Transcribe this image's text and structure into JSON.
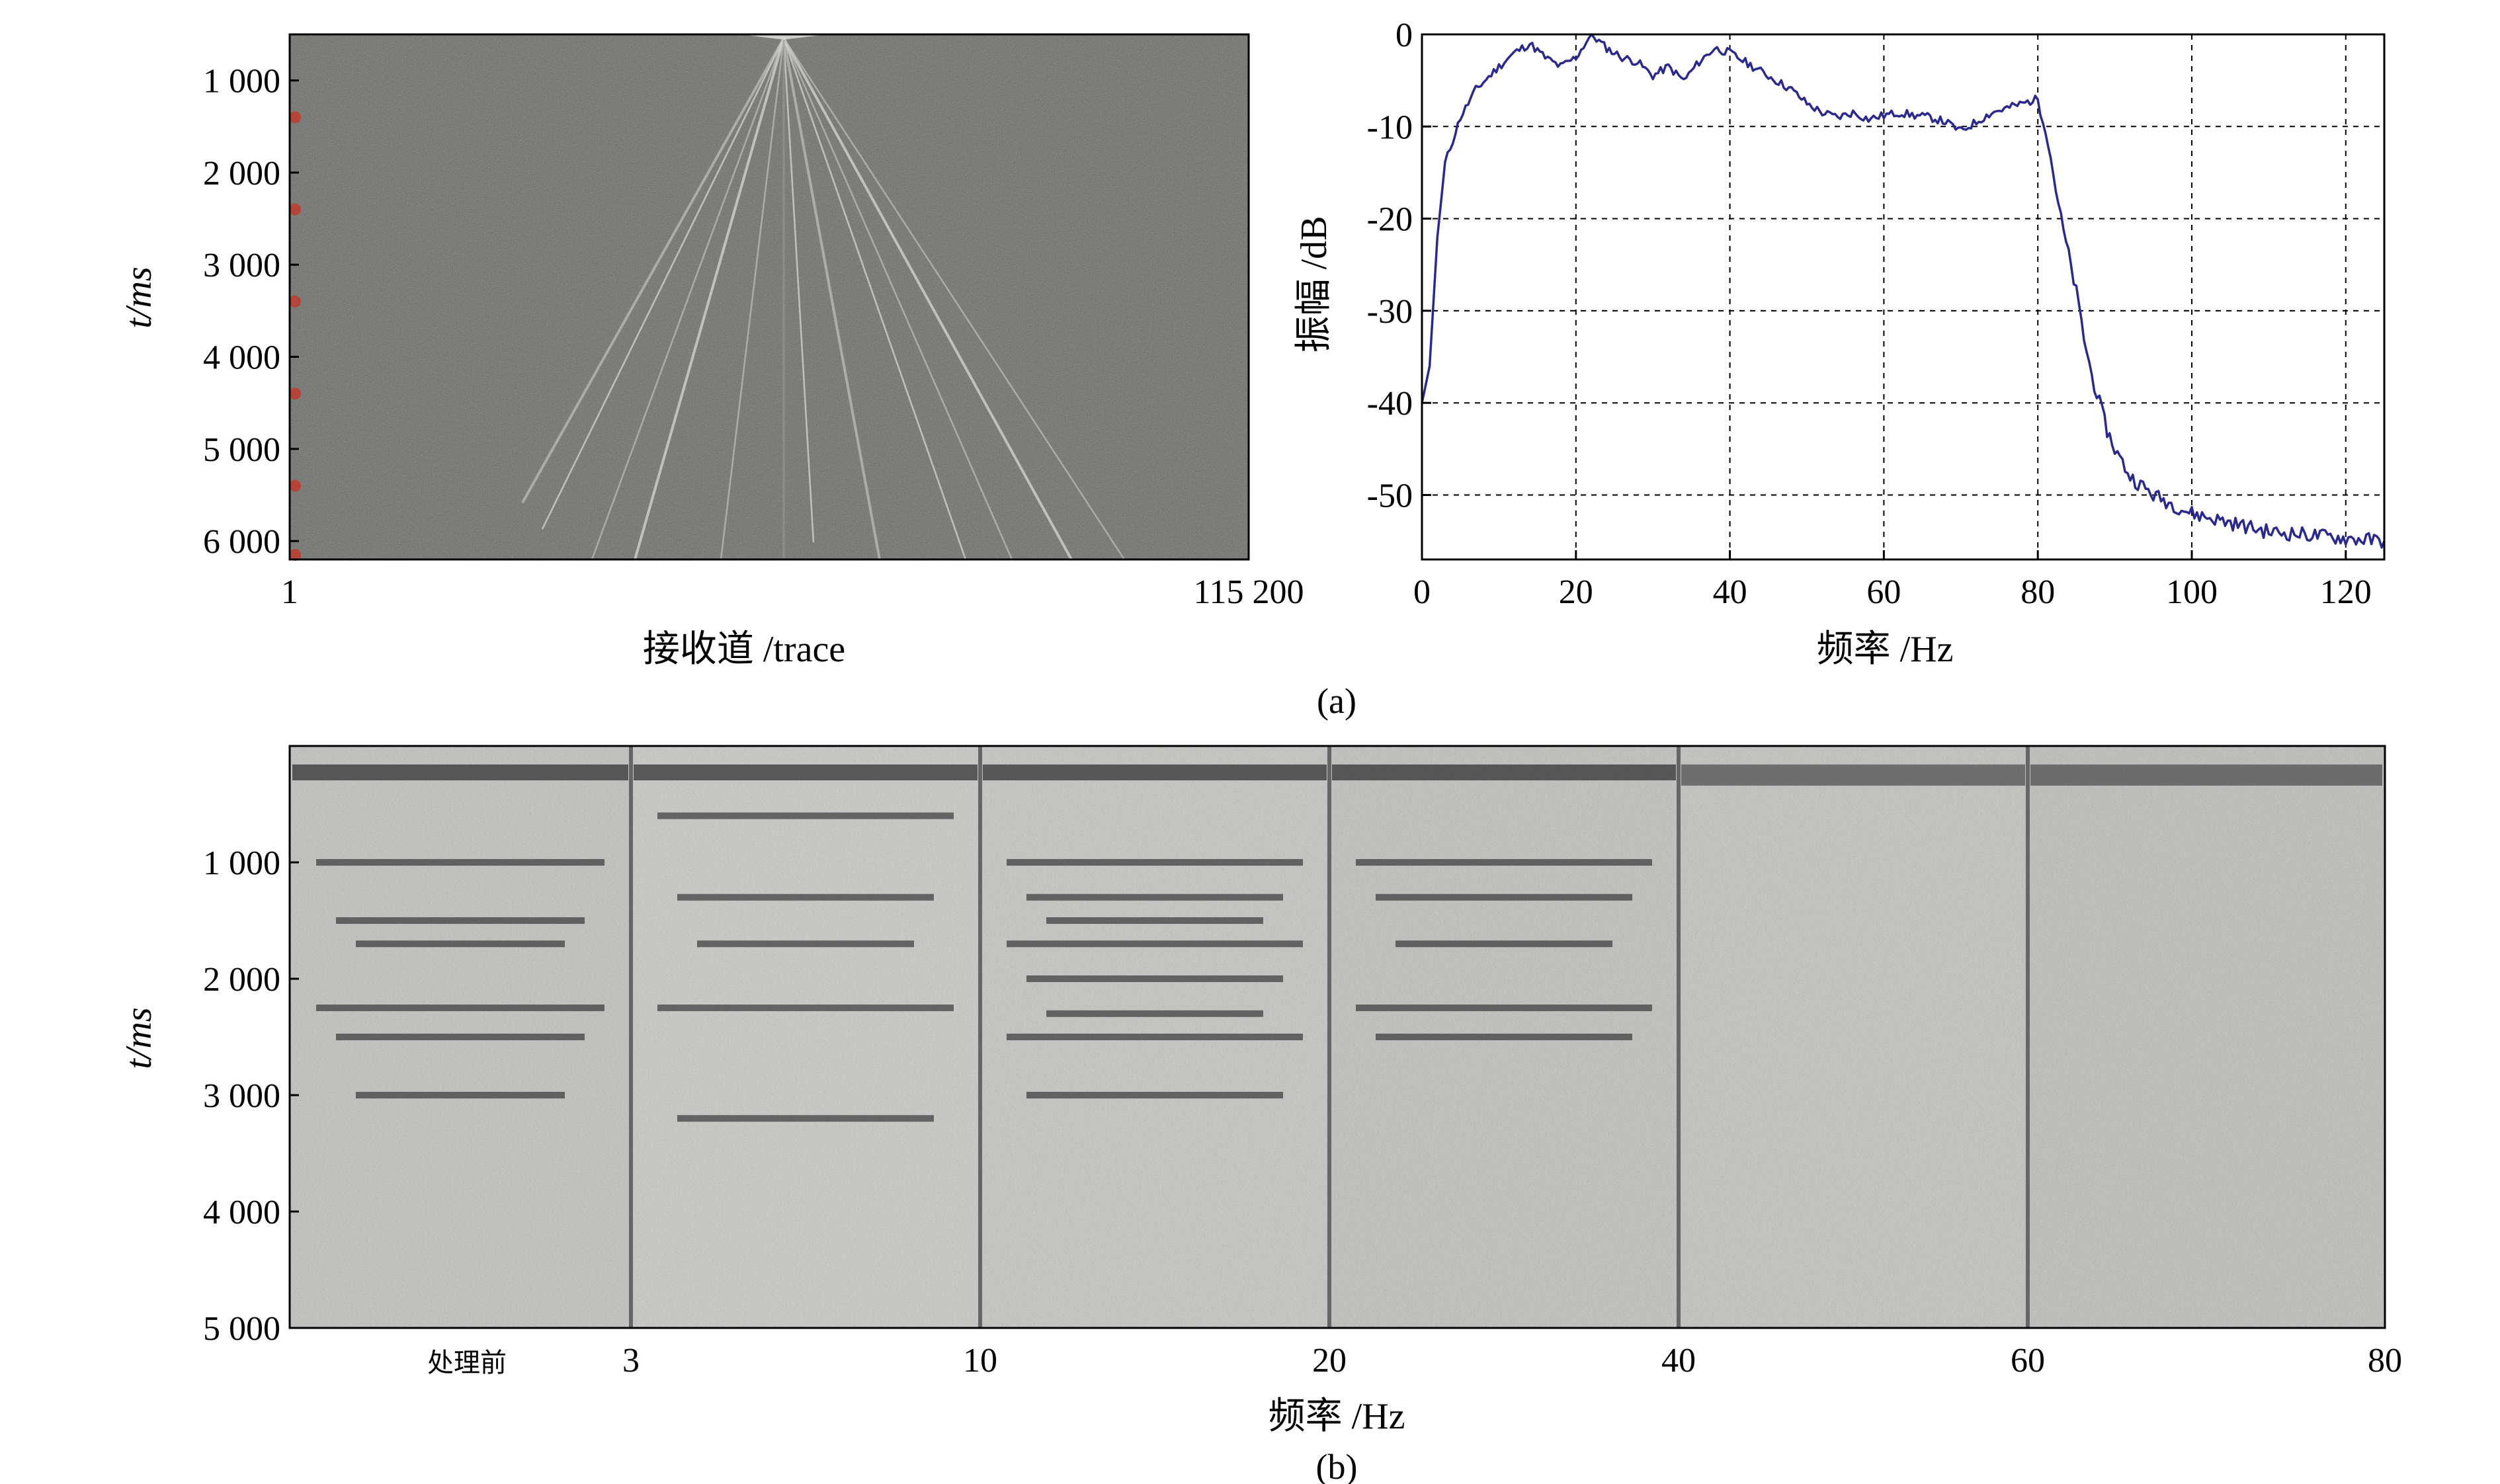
{
  "figure": {
    "panel_a_label": "(a)",
    "panel_b_label": "(b)"
  },
  "colors": {
    "seismic_bg": "#4a4a46",
    "spectrum_line": "#2b2a8c",
    "trace_marker": "#c0392b",
    "section_light": "#c4c4c2",
    "divider": "#666666"
  },
  "chart_data": [
    {
      "id": "seismic-record",
      "type": "heatmap",
      "xlabel": "接收道 /trace",
      "ylabel": "t/ms",
      "x_ticks": [
        "1",
        "115 200"
      ],
      "y_ticks": [
        {
          "label": "1 000",
          "value": 1000
        },
        {
          "label": "2 000",
          "value": 2000
        },
        {
          "label": "3 000",
          "value": 3000
        },
        {
          "label": "4 000",
          "value": 4000
        },
        {
          "label": "5 000",
          "value": 5000
        },
        {
          "label": "6 000",
          "value": 6000
        }
      ],
      "ylim": [
        500,
        6200
      ],
      "description_marks": "gray seismic noise record with a fan of first-break arrivals radiating from the top center"
    },
    {
      "id": "amplitude-spectrum",
      "type": "line",
      "xlabel": "频率 /Hz",
      "ylabel": "振幅 /dB",
      "xlim": [
        0,
        125
      ],
      "ylim": [
        -57,
        0
      ],
      "x_ticks": [
        0,
        20,
        40,
        60,
        80,
        100,
        120
      ],
      "y_ticks": [
        0,
        -10,
        -20,
        -30,
        -40,
        -50
      ],
      "grid": "dashed",
      "series": [
        {
          "points": [
            [
              0,
              -40
            ],
            [
              1,
              -36
            ],
            [
              2,
              -22
            ],
            [
              3,
              -14
            ],
            [
              5,
              -9
            ],
            [
              7,
              -6
            ],
            [
              10,
              -3.5
            ],
            [
              12,
              -2
            ],
            [
              14,
              -1
            ],
            [
              16,
              -2.5
            ],
            [
              18,
              -3.5
            ],
            [
              20,
              -2.5
            ],
            [
              22,
              0
            ],
            [
              24,
              -1.5
            ],
            [
              26,
              -2.5
            ],
            [
              28,
              -3
            ],
            [
              30,
              -4.5
            ],
            [
              32,
              -3.5
            ],
            [
              34,
              -5
            ],
            [
              36,
              -3
            ],
            [
              38,
              -1.5
            ],
            [
              40,
              -2
            ],
            [
              42,
              -3
            ],
            [
              44,
              -4
            ],
            [
              46,
              -5
            ],
            [
              48,
              -6
            ],
            [
              50,
              -7.5
            ],
            [
              52,
              -8.5
            ],
            [
              54,
              -9
            ],
            [
              56,
              -8.5
            ],
            [
              58,
              -9.2
            ],
            [
              60,
              -8.8
            ],
            [
              62,
              -8.5
            ],
            [
              64,
              -8.8
            ],
            [
              66,
              -9
            ],
            [
              68,
              -9.5
            ],
            [
              70,
              -10.5
            ],
            [
              72,
              -9.5
            ],
            [
              74,
              -8.5
            ],
            [
              76,
              -8
            ],
            [
              78,
              -7.5
            ],
            [
              80,
              -7
            ],
            [
              81,
              -10
            ],
            [
              82,
              -15
            ],
            [
              83,
              -20
            ],
            [
              84,
              -24
            ],
            [
              85,
              -28
            ],
            [
              86,
              -33
            ],
            [
              87,
              -37
            ],
            [
              88,
              -40
            ],
            [
              89,
              -43
            ],
            [
              90,
              -45
            ],
            [
              92,
              -48
            ],
            [
              95,
              -50
            ],
            [
              100,
              -52
            ],
            [
              105,
              -53
            ],
            [
              110,
              -54
            ],
            [
              115,
              -54.3
            ],
            [
              120,
              -54.7
            ],
            [
              125,
              -55
            ]
          ]
        }
      ]
    },
    {
      "id": "frequency-panels",
      "type": "heatmap",
      "xlabel": "频率 /Hz",
      "ylabel": "t/ms",
      "x_ticks": [
        "处理前",
        "3",
        "10",
        "20",
        "40",
        "60",
        "80"
      ],
      "y_ticks": [
        {
          "label": "1 000",
          "value": 1000
        },
        {
          "label": "2 000",
          "value": 2000
        },
        {
          "label": "3 000",
          "value": 3000
        },
        {
          "label": "4 000",
          "value": 4000
        },
        {
          "label": "5 000",
          "value": 5000
        }
      ],
      "ylim": [
        0,
        5000
      ],
      "panels": [
        {
          "reflections_ms": [
            1000,
            1500,
            1700,
            2250,
            2500,
            3000
          ]
        },
        {
          "reflections_ms": [
            600,
            1300,
            1700,
            2250,
            3200
          ]
        },
        {
          "reflections_ms": [
            1000,
            1300,
            1500,
            1700,
            2000,
            2300,
            2500,
            3000
          ]
        },
        {
          "reflections_ms": [
            1000,
            1300,
            1700,
            2250,
            2500
          ]
        },
        {
          "reflections_ms": []
        },
        {
          "reflections_ms": []
        }
      ]
    }
  ]
}
